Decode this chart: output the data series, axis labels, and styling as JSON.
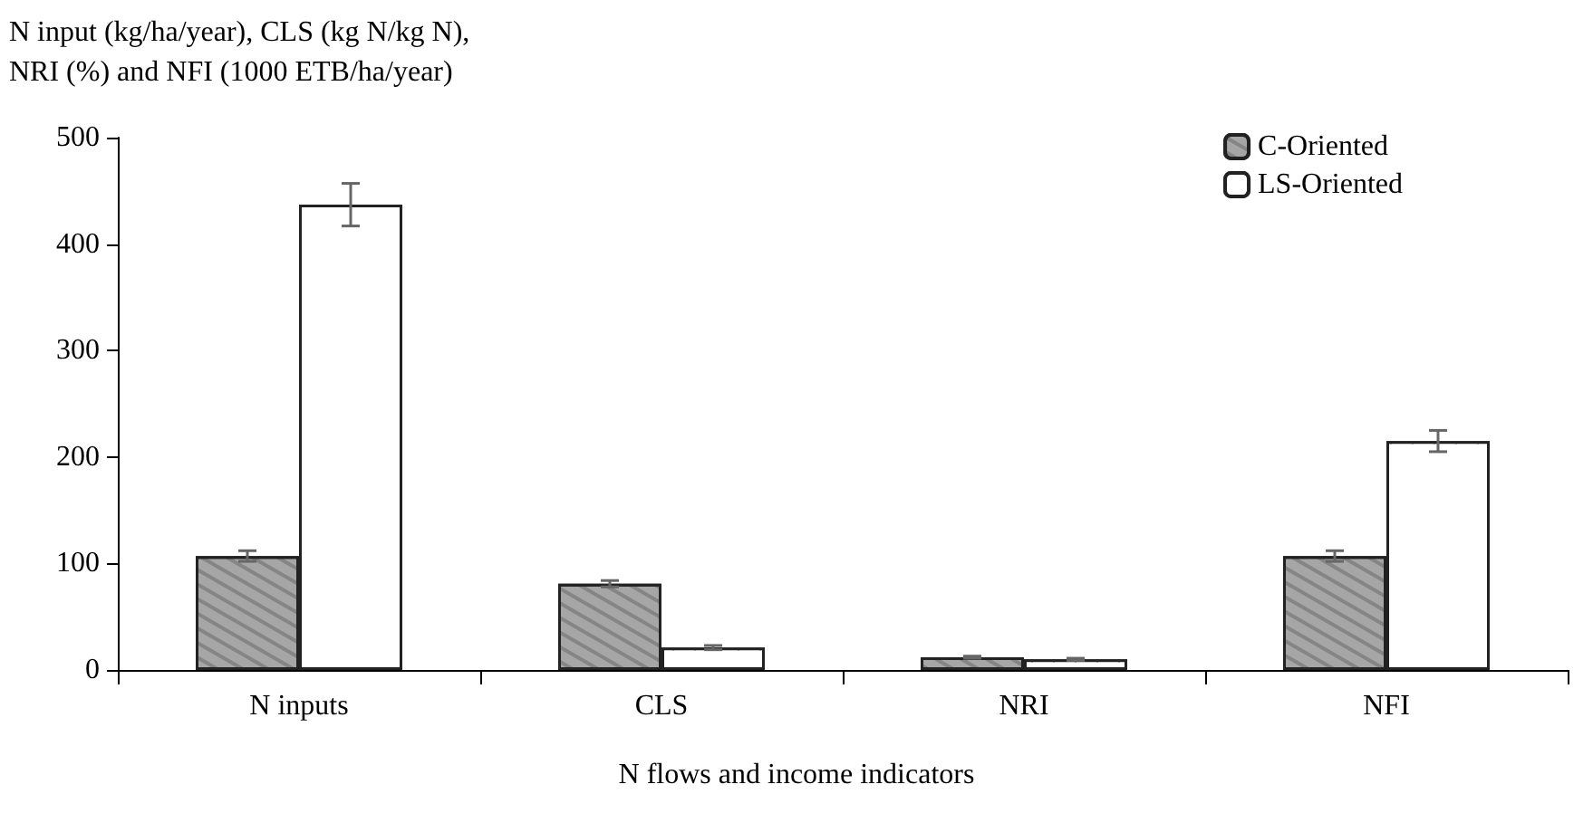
{
  "chart_data": {
    "type": "bar",
    "ylabel": "N input (kg/ha/year), CLS (kg N/kg N),\nNRI (%) and NFI (1000 ETB/ha/year)",
    "xlabel": "N flows and income indicators",
    "categories": [
      "N inputs",
      "CLS",
      "NRI",
      "NFI"
    ],
    "series": [
      {
        "name": "C-Oriented",
        "color": "#a6a6a6",
        "values": [
          107,
          81,
          12,
          107
        ],
        "errors": [
          5,
          3,
          1,
          5
        ]
      },
      {
        "name": "LS-Oriented",
        "color": "#ffffff",
        "values": [
          437,
          21,
          10,
          215
        ],
        "errors": [
          20,
          2,
          1,
          10
        ]
      }
    ],
    "ylim": [
      0,
      500
    ],
    "yticks": [
      0,
      100,
      200,
      300,
      400,
      500
    ],
    "grid": false,
    "legend": "top right"
  }
}
